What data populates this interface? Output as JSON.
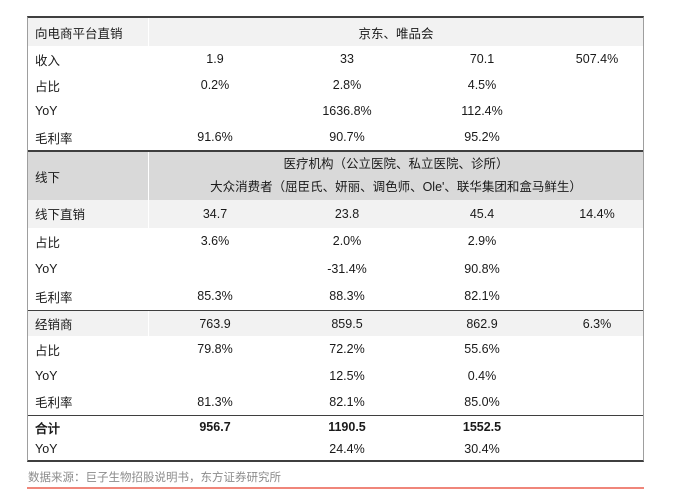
{
  "table": {
    "rows": [
      {
        "label": "向电商平台直销",
        "merged": "京东、唯品会"
      },
      {
        "label": "收入",
        "c1": "1.9",
        "c2": "33",
        "c3": "70.1",
        "c4": "507.4%"
      },
      {
        "label": "占比",
        "c1": "0.2%",
        "c2": "2.8%",
        "c3": "4.5%",
        "c4": ""
      },
      {
        "label": "YoY",
        "c1": "",
        "c2": "1636.8%",
        "c3": "112.4%",
        "c4": ""
      },
      {
        "label": "毛利率",
        "c1": "91.6%",
        "c2": "90.7%",
        "c3": "95.2%",
        "c4": ""
      },
      {
        "label": "线下",
        "merged_line1": "医疗机构（公立医院、私立医院、诊所）",
        "merged_line2": "大众消费者（屈臣氏、妍丽、调色师、Ole'、联华集团和盒马鲜生）"
      },
      {
        "label": "线下直销",
        "c1": "34.7",
        "c2": "23.8",
        "c3": "45.4",
        "c4": "14.4%"
      },
      {
        "label": "占比",
        "c1": "3.6%",
        "c2": "2.0%",
        "c3": "2.9%",
        "c4": ""
      },
      {
        "label": "YoY",
        "c1": "",
        "c2": "-31.4%",
        "c3": "90.8%",
        "c4": ""
      },
      {
        "label": "毛利率",
        "c1": "85.3%",
        "c2": "88.3%",
        "c3": "82.1%",
        "c4": ""
      },
      {
        "label": "经销商",
        "c1": "763.9",
        "c2": "859.5",
        "c3": "862.9",
        "c4": "6.3%"
      },
      {
        "label": "占比",
        "c1": "79.8%",
        "c2": "72.2%",
        "c3": "55.6%",
        "c4": ""
      },
      {
        "label": "YoY",
        "c1": "",
        "c2": "12.5%",
        "c3": "0.4%",
        "c4": ""
      },
      {
        "label": "毛利率",
        "c1": "81.3%",
        "c2": "82.1%",
        "c3": "85.0%",
        "c4": ""
      },
      {
        "label": "合计",
        "c1": "956.7",
        "c2": "1190.5",
        "c3": "1552.5",
        "c4": ""
      },
      {
        "label": "YoY",
        "c1": "",
        "c2": "24.4%",
        "c3": "30.4%",
        "c4": ""
      }
    ]
  },
  "footer": {
    "source": "数据来源：巨子生物招股说明书，东方证券研究所"
  },
  "colors": {
    "shade_light": "#f2f2f2",
    "shade_mid": "#d9d9d9",
    "section_line": "#3f3f3f",
    "side_border": "#9e9e9e",
    "footer_text": "#8c8c8c",
    "bottom_rule_red": "#f0867a"
  }
}
